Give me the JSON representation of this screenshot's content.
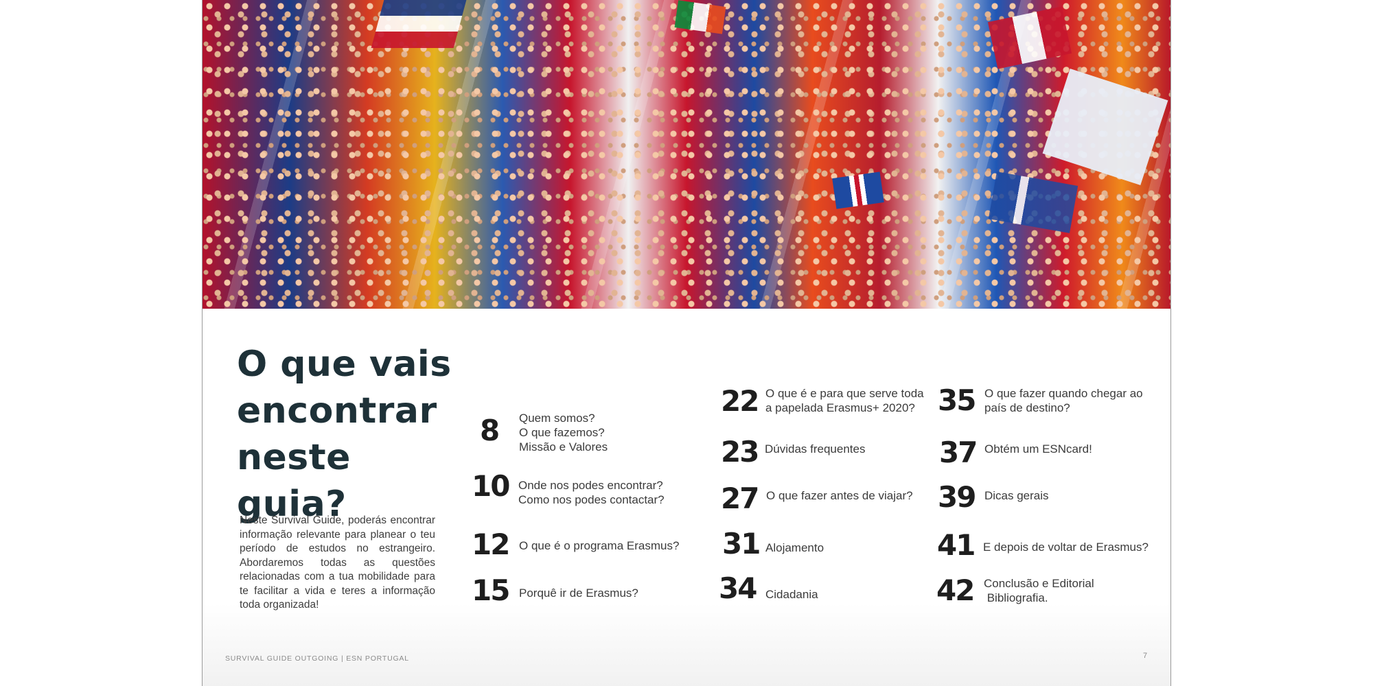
{
  "document": {
    "heading_lines": [
      "O que vais",
      "encontrar",
      "neste guia?"
    ],
    "intro": "Neste Survival Guide, poderás encontrar informação relevante para planear o teu período de estudos no estrangeiro. Abordaremos todas as questões relacionadas com a tua mobilidade para te facilitar a vida e teres a informação toda organizada!",
    "toc": [
      {
        "num": "8",
        "lines": [
          "Quem somos?",
          "O que fazemos?",
          "Missão e Valores"
        ]
      },
      {
        "num": "10",
        "lines": [
          "Onde nos podes encontrar?",
          "Como nos podes contactar?"
        ]
      },
      {
        "num": "12",
        "lines": [
          "O que é o programa Erasmus?"
        ]
      },
      {
        "num": "15",
        "lines": [
          "Porquê ir de Erasmus?"
        ]
      },
      {
        "num": "22",
        "lines": [
          "O que é e para que serve toda",
          "a papelada Erasmus+ 2020?"
        ]
      },
      {
        "num": "23",
        "lines": [
          "Dúvidas frequentes"
        ]
      },
      {
        "num": "27",
        "lines": [
          "O que fazer antes de viajar?"
        ]
      },
      {
        "num": "31",
        "lines": [
          "Alojamento"
        ]
      },
      {
        "num": "34",
        "lines": [
          "Cidadania"
        ]
      },
      {
        "num": "35",
        "lines": [
          "O que fazer quando chegar ao",
          "país de destino?"
        ]
      },
      {
        "num": "37",
        "lines": [
          "Obtém um ESNcard!"
        ]
      },
      {
        "num": "39",
        "lines": [
          "Dicas gerais"
        ]
      },
      {
        "num": "41",
        "lines": [
          "E depois de voltar de Erasmus?"
        ]
      },
      {
        "num": "42",
        "lines": [
          "Conclusão e Editorial",
          " Bibliografia."
        ]
      }
    ],
    "footer_left": "SURVIVAL GUIDE OUTGOING | ESN PORTUGAL",
    "page_number": "7"
  },
  "colors": {
    "heading": "#1e3138",
    "text": "#3b3b3b",
    "number": "#1e1e1e",
    "footer": "#8a8a8a"
  }
}
